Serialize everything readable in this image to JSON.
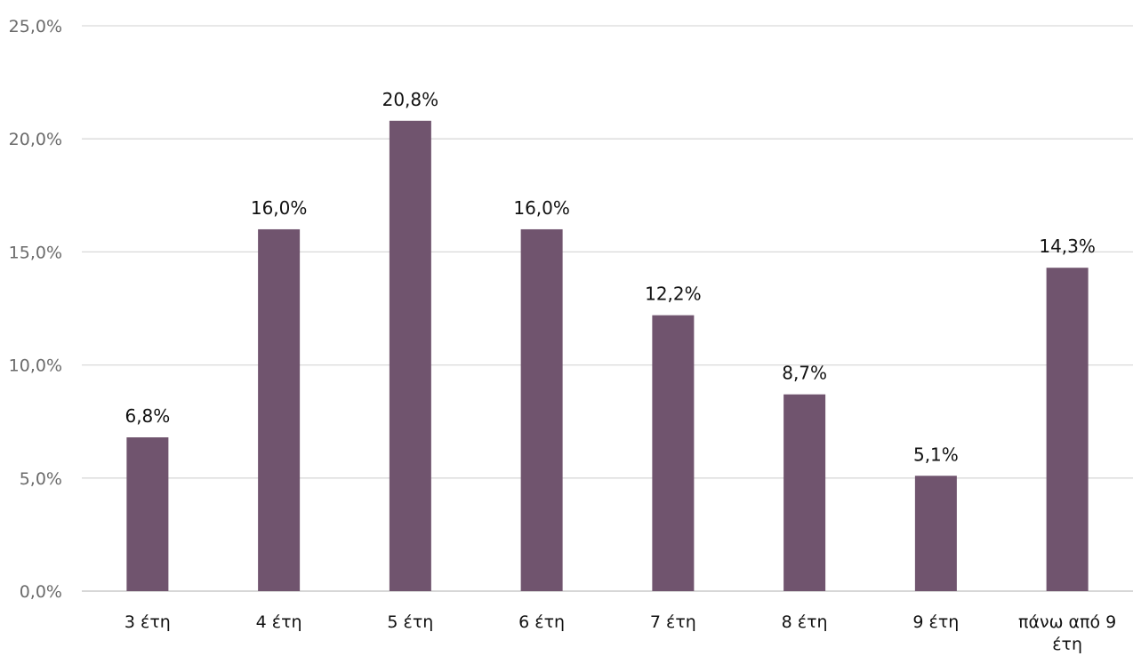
{
  "chart_data": {
    "type": "bar",
    "categories": [
      "3 έτη",
      "4 έτη",
      "5 έτη",
      "6 έτη",
      "7 έτη",
      "8 έτη",
      "9 έτη",
      "πάνω από 9 έτη"
    ],
    "category_lines": [
      [
        "3 έτη"
      ],
      [
        "4 έτη"
      ],
      [
        "5 έτη"
      ],
      [
        "6 έτη"
      ],
      [
        "7 έτη"
      ],
      [
        "8 έτη"
      ],
      [
        "9 έτη"
      ],
      [
        "πάνω από 9",
        "έτη"
      ]
    ],
    "values": [
      6.8,
      16.0,
      20.8,
      16.0,
      12.2,
      8.7,
      5.1,
      14.3
    ],
    "value_labels": [
      "6,8%",
      "16,0%",
      "20,8%",
      "16,0%",
      "12,2%",
      "8,7%",
      "5,1%",
      "14,3%"
    ],
    "ylim": [
      0,
      25
    ],
    "yticks": [
      0,
      5,
      10,
      15,
      20,
      25
    ],
    "ytick_labels": [
      "0,0%",
      "5,0%",
      "10,0%",
      "15,0%",
      "20,0%",
      "25,0%"
    ],
    "grid": true,
    "legend": "none",
    "title": "",
    "xlabel": "",
    "ylabel": ""
  },
  "colors": {
    "bar": "#70546e",
    "grid": "#d9d9d9",
    "axis": "#bfbfbf"
  }
}
